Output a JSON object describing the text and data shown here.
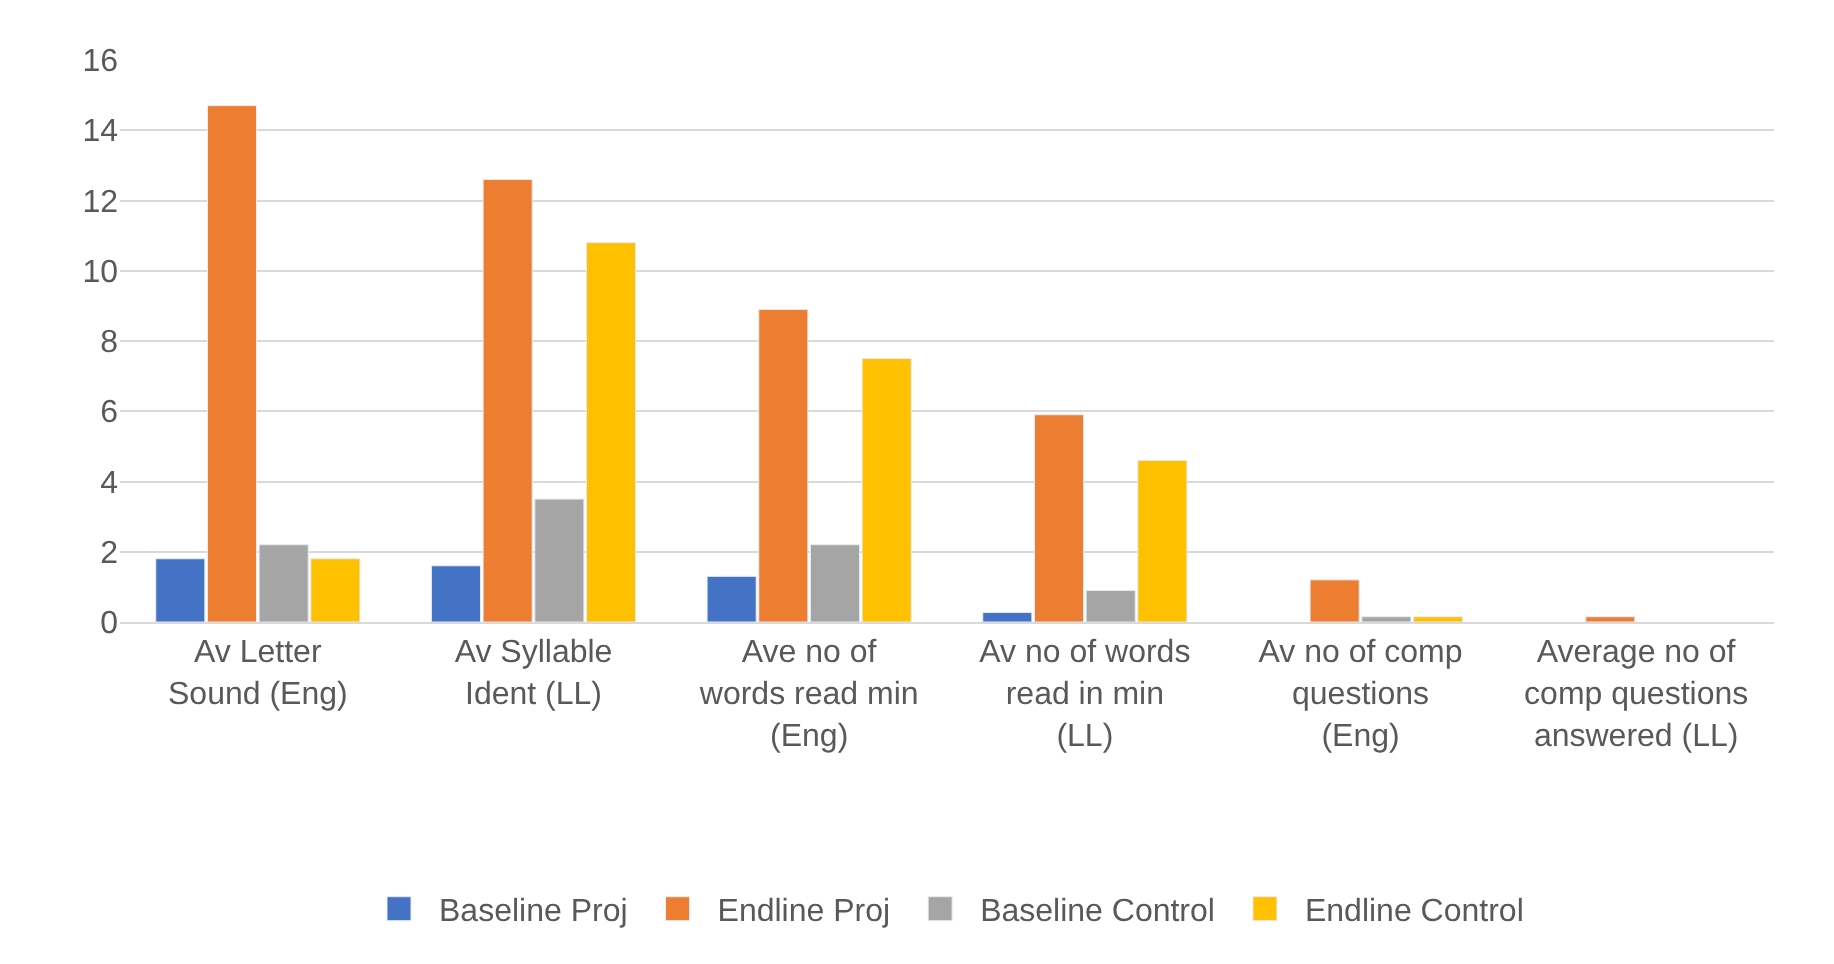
{
  "chart_data": {
    "type": "bar",
    "categories": [
      "Av Letter Sound (Eng)",
      "Av Syllable Ident (LL)",
      "Ave no of words read min (Eng)",
      "Av no of words read in min (LL)",
      "Av no of comp questions (Eng)",
      "Average no of comp questions answered (LL)"
    ],
    "series": [
      {
        "name": "Baseline Proj",
        "color": "#4472c4",
        "values": [
          1.8,
          1.6,
          1.3,
          0.27,
          null,
          null
        ]
      },
      {
        "name": "Endline Proj",
        "color": "#ed7d31",
        "values": [
          14.7,
          12.6,
          8.9,
          5.9,
          1.2,
          0.15
        ]
      },
      {
        "name": "Baseline Control",
        "color": "#a5a5a5",
        "values": [
          2.2,
          3.5,
          2.2,
          0.9,
          0.15,
          null
        ]
      },
      {
        "name": "Endline Control",
        "color": "#ffc000",
        "values": [
          1.8,
          10.8,
          7.5,
          4.6,
          0.15,
          null
        ]
      }
    ],
    "ylim": [
      0,
      16
    ],
    "yticks": [
      0,
      2,
      4,
      6,
      8,
      10,
      12,
      14,
      16
    ],
    "grid": "y",
    "legend": "bottom"
  }
}
